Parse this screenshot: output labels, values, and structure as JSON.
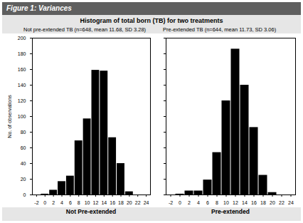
{
  "title": "Figure 1: Variances",
  "subtitle": "Histogram of total born (TB) for two treatments",
  "chart_data": [
    {
      "type": "histogram",
      "title": "Not pre-extended TB (n=648, mean 11.68, SD 3.28)",
      "x_label": "Not Pre-extended",
      "y_label": "No. of observations",
      "bins": [
        -1,
        1,
        3,
        5,
        7,
        9,
        11,
        13,
        15,
        17,
        19,
        21,
        23,
        25
      ],
      "values": [
        1,
        6,
        17,
        24,
        69,
        97,
        159,
        158,
        73,
        40,
        4,
        0,
        0
      ],
      "color": "#000000",
      "xlim": [
        -3,
        25
      ],
      "xticks": [
        -2,
        0,
        2,
        4,
        6,
        8,
        10,
        12,
        14,
        16,
        18,
        20,
        22,
        24
      ],
      "ylim": [
        0,
        200
      ],
      "yticks": [
        0,
        20,
        40,
        60,
        80,
        100,
        120,
        140,
        160,
        180,
        200
      ],
      "grid": false
    },
    {
      "type": "histogram",
      "title": "Pre-extended TB (n=644, mean 11.73, SD 3.06)",
      "x_label": "Pre-extended",
      "bins": [
        -1,
        1,
        3,
        5,
        7,
        9,
        11,
        13,
        15,
        17,
        19,
        21,
        23,
        25
      ],
      "values": [
        1,
        5,
        5,
        19,
        54,
        120,
        186,
        140,
        86,
        25,
        3,
        0,
        0
      ],
      "color": "#000000",
      "xlim": [
        -3,
        25
      ],
      "xticks": [
        -2,
        0,
        2,
        4,
        6,
        8,
        10,
        12,
        14,
        16,
        18,
        20,
        22,
        24
      ],
      "ylim": [
        0,
        200
      ],
      "yticks": [
        0,
        20,
        40,
        60,
        80,
        100,
        120,
        140,
        160,
        180,
        200
      ],
      "grid": false,
      "tick_labels": "x"
    }
  ]
}
